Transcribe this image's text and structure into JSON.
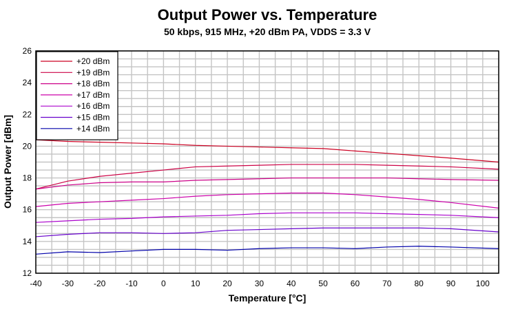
{
  "chart_data": {
    "type": "line",
    "title": "Output Power vs. Temperature",
    "subtitle": "50 kbps, 915 MHz, +20 dBm PA, VDDS = 3.3 V",
    "xlabel": "Temperature [°C]",
    "ylabel": "Output Power [dBm]",
    "xlim": [
      -40,
      105
    ],
    "ylim": [
      12,
      26
    ],
    "xticks": [
      -40,
      -30,
      -20,
      -10,
      0,
      10,
      20,
      30,
      40,
      50,
      60,
      70,
      80,
      90,
      100
    ],
    "yticks": [
      12,
      14,
      16,
      18,
      20,
      22,
      24,
      26
    ],
    "grid": true,
    "legend_position": "top-left",
    "x": [
      -40,
      -30,
      -20,
      -10,
      0,
      10,
      20,
      30,
      40,
      50,
      60,
      70,
      80,
      90,
      105
    ],
    "series": [
      {
        "name": "+20 dBm",
        "color": "#cc0022",
        "values": [
          20.4,
          20.3,
          20.25,
          20.2,
          20.15,
          20.05,
          20.0,
          19.95,
          19.9,
          19.85,
          19.7,
          19.55,
          19.4,
          19.25,
          19.0
        ]
      },
      {
        "name": "+19 dBm",
        "color": "#cc0044",
        "values": [
          17.3,
          17.8,
          18.1,
          18.3,
          18.5,
          18.7,
          18.75,
          18.8,
          18.85,
          18.85,
          18.85,
          18.8,
          18.75,
          18.7,
          18.55
        ]
      },
      {
        "name": "+18 dBm",
        "color": "#cc0088",
        "values": [
          17.3,
          17.55,
          17.7,
          17.75,
          17.75,
          17.85,
          17.9,
          17.95,
          18.0,
          18.0,
          18.0,
          18.0,
          17.95,
          17.9,
          17.85
        ]
      },
      {
        "name": "+17 dBm",
        "color": "#cc00aa",
        "values": [
          16.2,
          16.4,
          16.5,
          16.6,
          16.7,
          16.85,
          16.95,
          17.0,
          17.05,
          17.05,
          16.95,
          16.8,
          16.65,
          16.45,
          16.1
        ]
      },
      {
        "name": "+16 dBm",
        "color": "#aa00cc",
        "values": [
          15.2,
          15.3,
          15.4,
          15.45,
          15.55,
          15.6,
          15.65,
          15.75,
          15.8,
          15.8,
          15.8,
          15.75,
          15.7,
          15.65,
          15.5
        ]
      },
      {
        "name": "+15 dBm",
        "color": "#6600cc",
        "values": [
          14.3,
          14.45,
          14.55,
          14.55,
          14.5,
          14.55,
          14.7,
          14.75,
          14.8,
          14.85,
          14.85,
          14.85,
          14.85,
          14.8,
          14.6
        ]
      },
      {
        "name": "+14 dBm",
        "color": "#0000aa",
        "values": [
          13.2,
          13.35,
          13.3,
          13.4,
          13.5,
          13.5,
          13.45,
          13.55,
          13.6,
          13.6,
          13.55,
          13.65,
          13.7,
          13.65,
          13.55
        ]
      }
    ]
  }
}
